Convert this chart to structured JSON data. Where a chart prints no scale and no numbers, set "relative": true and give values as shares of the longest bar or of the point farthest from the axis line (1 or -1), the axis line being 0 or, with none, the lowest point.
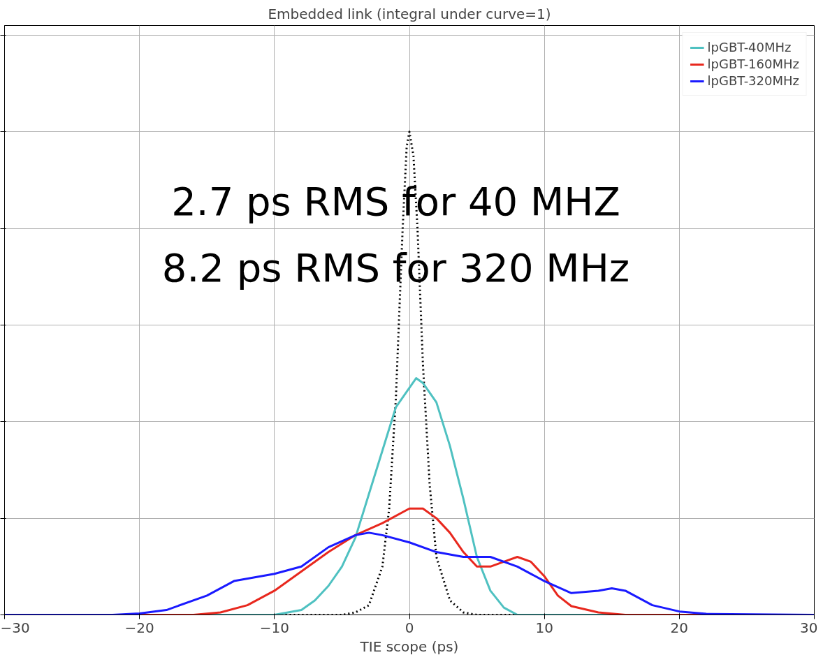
{
  "chart_data": {
    "type": "line",
    "title": "Embedded link (integral under curve=1)",
    "xlabel": "TIE scope (ps)",
    "relative": true,
    "xlim": [
      -30,
      30
    ],
    "xticks": [
      -30,
      -20,
      -10,
      0,
      10,
      20,
      30
    ],
    "grid": true,
    "legend": "top right",
    "series": [
      {
        "color": "#000000",
        "line_style": "dotted",
        "x": [
          -30,
          -5,
          -4,
          -3,
          -2,
          -1.5,
          -1,
          -0.5,
          -0.2,
          0,
          0.3,
          0.6,
          1,
          1.5,
          2,
          3,
          4,
          5,
          30
        ],
        "values": [
          0,
          0,
          0.005,
          0.02,
          0.1,
          0.22,
          0.45,
          0.8,
          0.97,
          1,
          0.95,
          0.8,
          0.52,
          0.27,
          0.12,
          0.03,
          0.005,
          0,
          0
        ]
      },
      {
        "name": "lpGBT-40MHz",
        "color": "#4fc1c1",
        "x": [
          -30,
          -10,
          -8,
          -7,
          -6,
          -5,
          -4,
          -3,
          -2,
          -1,
          0,
          0.5,
          1,
          2,
          3,
          4,
          5,
          6,
          7,
          8,
          30
        ],
        "values": [
          0,
          0,
          0.01,
          0.03,
          0.06,
          0.1,
          0.16,
          0.25,
          0.34,
          0.43,
          0.47,
          0.49,
          0.48,
          0.44,
          0.35,
          0.24,
          0.12,
          0.05,
          0.015,
          0,
          0
        ]
      },
      {
        "name": "lpGBT-160MHz",
        "color": "#e8281e",
        "x": [
          -30,
          -16,
          -14,
          -12,
          -10,
          -8,
          -6,
          -4,
          -2,
          0,
          1,
          2,
          3,
          4,
          5,
          6,
          7,
          8,
          9,
          10,
          11,
          12,
          14,
          16,
          30
        ],
        "values": [
          0,
          0,
          0.005,
          0.02,
          0.05,
          0.09,
          0.13,
          0.165,
          0.19,
          0.22,
          0.22,
          0.2,
          0.17,
          0.13,
          0.1,
          0.1,
          0.11,
          0.12,
          0.11,
          0.08,
          0.04,
          0.018,
          0.005,
          0,
          0
        ]
      },
      {
        "name": "lpGBT-320MHz",
        "color": "#1a1aff",
        "x": [
          -30,
          -22,
          -20,
          -18,
          -15,
          -13,
          -10,
          -8,
          -6,
          -4,
          -3,
          -2,
          0,
          2,
          4,
          6,
          8,
          10,
          12,
          14,
          15,
          16,
          18,
          20,
          22,
          30
        ],
        "values": [
          0,
          0,
          0.003,
          0.01,
          0.04,
          0.07,
          0.085,
          0.1,
          0.14,
          0.165,
          0.17,
          0.165,
          0.15,
          0.13,
          0.12,
          0.12,
          0.1,
          0.07,
          0.045,
          0.05,
          0.055,
          0.05,
          0.02,
          0.007,
          0.002,
          0
        ]
      }
    ],
    "annotations": [
      "2.7 ps RMS for 40 MHZ",
      "8.2 ps RMS for 320 MHz"
    ]
  }
}
